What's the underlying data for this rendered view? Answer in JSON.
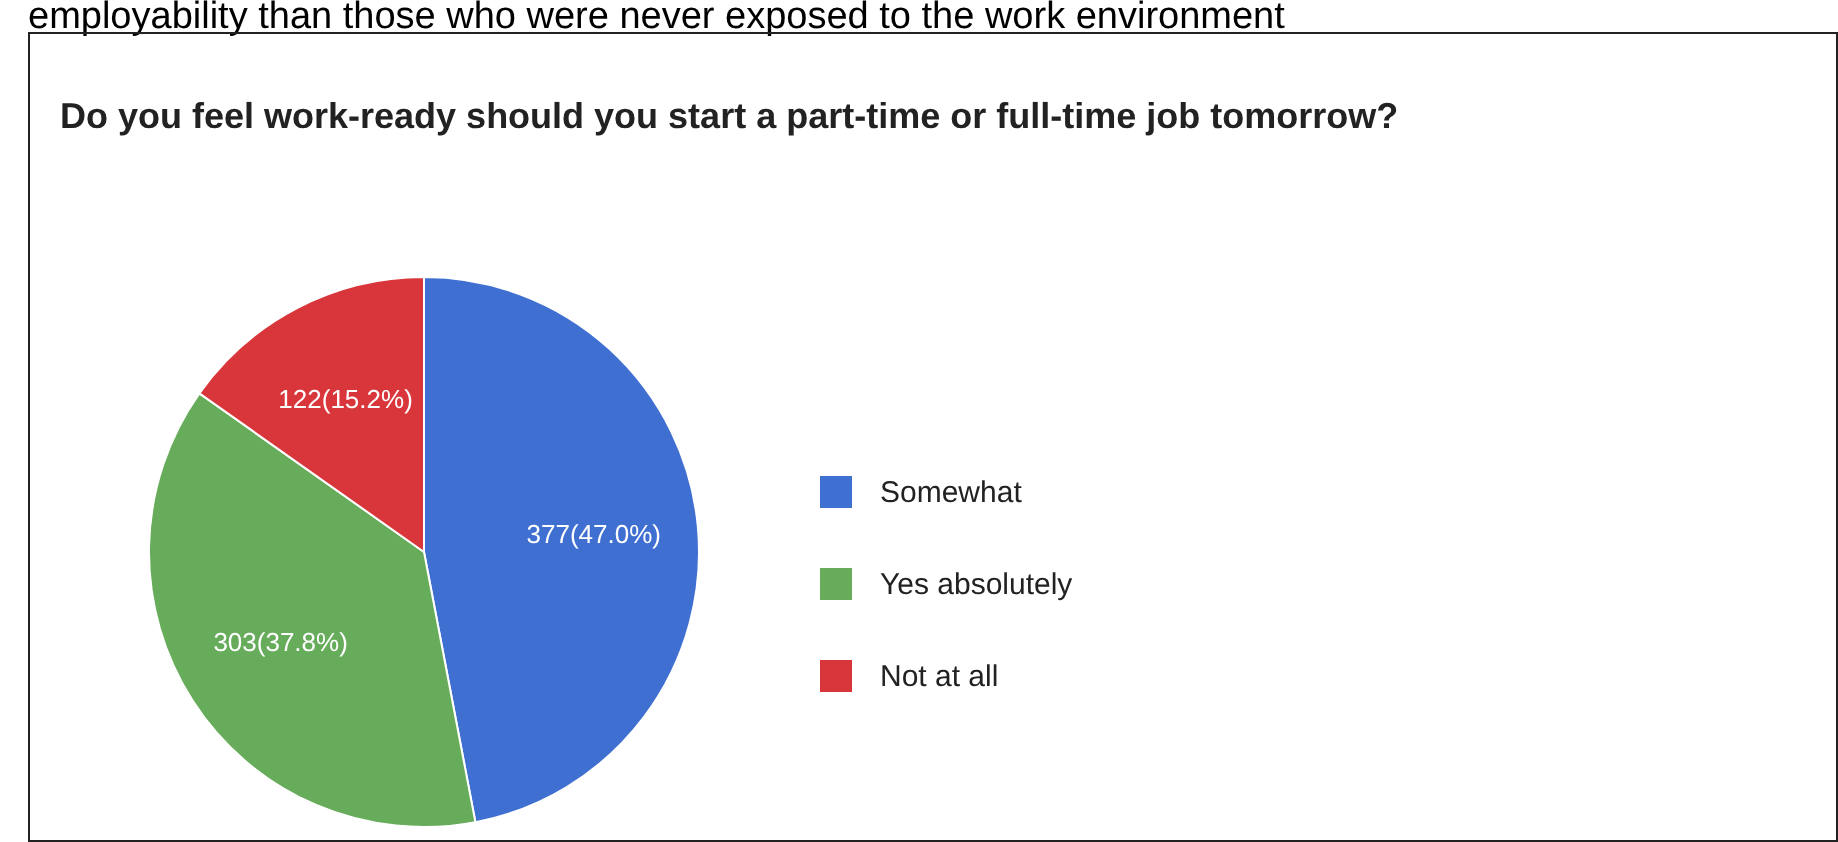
{
  "chart_data": {
    "type": "pie",
    "title": "Do you feel work-ready should you start a part-time or full-time job tomorrow?",
    "categories": [
      "Somewhat",
      "Yes absolutely",
      "Not at all"
    ],
    "values": [
      377,
      303,
      122
    ],
    "colors": [
      "#3f6fd1",
      "#66ac5a",
      "#d8363a"
    ],
    "value_labels": [
      "377(47.0%)",
      "303(37.8%)",
      "122(15.2%)"
    ],
    "legend": "right",
    "annotations": [
      "employability than those who were never exposed to the work environment"
    ]
  }
}
